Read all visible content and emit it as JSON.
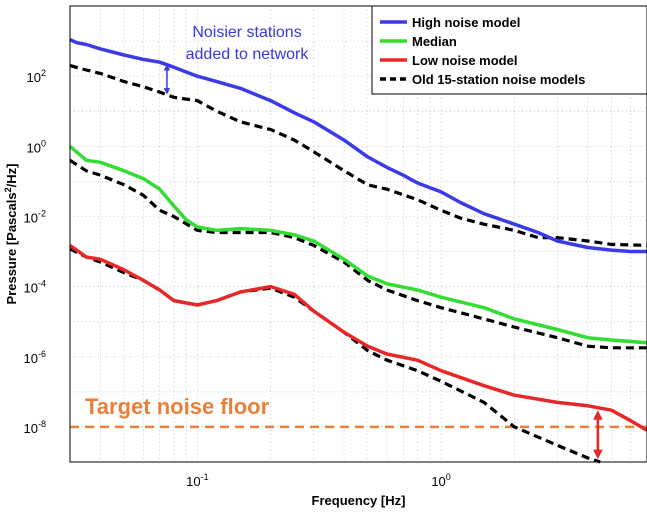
{
  "chart_data": {
    "type": "line",
    "title": "",
    "xlabel": "Frequency [Hz]",
    "ylabel_main": "Pressure [Pascals",
    "ylabel_sup": "2",
    "ylabel_end": "/Hz]",
    "x_scale": "log",
    "y_scale": "log",
    "xlim": [
      0.03,
      7
    ],
    "ylim": [
      1e-09,
      10000.0
    ],
    "grid": true,
    "legend_position": "top-right",
    "x_ticks": [
      {
        "value": 0.1,
        "base": "10",
        "exp": "-1"
      },
      {
        "value": 1,
        "base": "10",
        "exp": "0"
      }
    ],
    "y_ticks": [
      {
        "value": 1e-08,
        "base": "10",
        "exp": "-8"
      },
      {
        "value": 1e-06,
        "base": "10",
        "exp": "-6"
      },
      {
        "value": 0.0001,
        "base": "10",
        "exp": "-4"
      },
      {
        "value": 0.01,
        "base": "10",
        "exp": "-2"
      },
      {
        "value": 1,
        "base": "10",
        "exp": "0"
      },
      {
        "value": 100,
        "base": "10",
        "exp": "2"
      }
    ],
    "series": [
      {
        "name": "High noise model",
        "color": "#3a3ae8",
        "dash": "solid",
        "points": [
          [
            0.03,
            1100
          ],
          [
            0.032,
            900
          ],
          [
            0.035,
            800
          ],
          [
            0.04,
            600
          ],
          [
            0.05,
            400
          ],
          [
            0.06,
            300
          ],
          [
            0.07,
            250
          ],
          [
            0.08,
            180
          ],
          [
            0.1,
            100
          ],
          [
            0.12,
            70
          ],
          [
            0.15,
            45
          ],
          [
            0.2,
            20
          ],
          [
            0.25,
            9
          ],
          [
            0.3,
            5
          ],
          [
            0.4,
            1.5
          ],
          [
            0.5,
            0.5
          ],
          [
            0.6,
            0.25
          ],
          [
            0.7,
            0.15
          ],
          [
            0.8,
            0.09
          ],
          [
            1,
            0.05
          ],
          [
            1.2,
            0.025
          ],
          [
            1.5,
            0.012
          ],
          [
            2,
            0.006
          ],
          [
            2.5,
            0.0035
          ],
          [
            3,
            0.002
          ],
          [
            4,
            0.0013
          ],
          [
            5,
            0.0011
          ],
          [
            6,
            0.001
          ],
          [
            7,
            0.001
          ]
        ]
      },
      {
        "name": "Median",
        "color": "#33dd33",
        "dash": "solid",
        "points": [
          [
            0.03,
            1
          ],
          [
            0.035,
            0.4
          ],
          [
            0.04,
            0.35
          ],
          [
            0.05,
            0.2
          ],
          [
            0.06,
            0.12
          ],
          [
            0.07,
            0.06
          ],
          [
            0.08,
            0.02
          ],
          [
            0.09,
            0.008
          ],
          [
            0.1,
            0.005
          ],
          [
            0.12,
            0.004
          ],
          [
            0.15,
            0.0045
          ],
          [
            0.2,
            0.004
          ],
          [
            0.25,
            0.003
          ],
          [
            0.3,
            0.002
          ],
          [
            0.4,
            0.0006
          ],
          [
            0.5,
            0.0002
          ],
          [
            0.6,
            0.00012
          ],
          [
            0.8,
            8e-05
          ],
          [
            1,
            5e-05
          ],
          [
            1.5,
            2.5e-05
          ],
          [
            2,
            1.2e-05
          ],
          [
            3,
            6e-06
          ],
          [
            4,
            3.5e-06
          ],
          [
            5,
            3e-06
          ],
          [
            7,
            2.5e-06
          ]
        ]
      },
      {
        "name": "Low noise model",
        "color": "#e82828",
        "dash": "solid",
        "points": [
          [
            0.03,
            0.0015
          ],
          [
            0.035,
            0.0007
          ],
          [
            0.04,
            0.0006
          ],
          [
            0.05,
            0.0003
          ],
          [
            0.06,
            0.00015
          ],
          [
            0.07,
            8e-05
          ],
          [
            0.08,
            4e-05
          ],
          [
            0.1,
            3e-05
          ],
          [
            0.12,
            4e-05
          ],
          [
            0.15,
            7e-05
          ],
          [
            0.2,
            0.0001
          ],
          [
            0.25,
            6e-05
          ],
          [
            0.3,
            2e-05
          ],
          [
            0.4,
            5e-06
          ],
          [
            0.5,
            2e-06
          ],
          [
            0.6,
            1.2e-06
          ],
          [
            0.8,
            8e-07
          ],
          [
            1,
            4e-07
          ],
          [
            1.5,
            1.5e-07
          ],
          [
            2,
            8e-08
          ],
          [
            3,
            5e-08
          ],
          [
            4,
            4e-08
          ],
          [
            5,
            3e-08
          ],
          [
            6,
            1.5e-08
          ],
          [
            7,
            8e-09
          ]
        ]
      },
      {
        "name": "Old 15-station noise models",
        "color": "#000000",
        "dash": "dashed",
        "points": [
          [
            0.03,
            200
          ],
          [
            0.035,
            150
          ],
          [
            0.04,
            120
          ],
          [
            0.05,
            70
          ],
          [
            0.06,
            50
          ],
          [
            0.07,
            35
          ],
          [
            0.08,
            25
          ],
          [
            0.1,
            20
          ],
          [
            0.12,
            10
          ],
          [
            0.15,
            5
          ],
          [
            0.2,
            3
          ],
          [
            0.25,
            1.5
          ],
          [
            0.3,
            0.7
          ],
          [
            0.4,
            0.2
          ],
          [
            0.5,
            0.08
          ],
          [
            0.6,
            0.06
          ],
          [
            0.8,
            0.03
          ],
          [
            1,
            0.015
          ],
          [
            1.2,
            0.009
          ],
          [
            1.5,
            0.006
          ],
          [
            2,
            0.004
          ],
          [
            2.5,
            0.0025
          ],
          [
            3,
            0.0025
          ],
          [
            4,
            0.002
          ],
          [
            5,
            0.0016
          ],
          [
            7,
            0.0015
          ]
        ]
      },
      {
        "name": "",
        "color": "#000000",
        "dash": "dashed",
        "points": [
          [
            0.03,
            0.4
          ],
          [
            0.035,
            0.2
          ],
          [
            0.04,
            0.15
          ],
          [
            0.05,
            0.08
          ],
          [
            0.06,
            0.04
          ],
          [
            0.07,
            0.015
          ],
          [
            0.08,
            0.01
          ],
          [
            0.1,
            0.004
          ],
          [
            0.12,
            0.0035
          ],
          [
            0.15,
            0.0035
          ],
          [
            0.2,
            0.0035
          ],
          [
            0.25,
            0.0025
          ],
          [
            0.3,
            0.0015
          ],
          [
            0.4,
            0.0005
          ],
          [
            0.5,
            0.00015
          ],
          [
            0.6,
            8e-05
          ],
          [
            0.8,
            4e-05
          ],
          [
            1,
            2.5e-05
          ],
          [
            1.5,
            1.2e-05
          ],
          [
            2,
            7e-06
          ],
          [
            3,
            3.5e-06
          ],
          [
            4,
            2e-06
          ],
          [
            5,
            1.8e-06
          ],
          [
            7,
            1.8e-06
          ]
        ]
      },
      {
        "name": "",
        "color": "#000000",
        "dash": "dashed",
        "points": [
          [
            0.03,
            0.0012
          ],
          [
            0.035,
            0.0007
          ],
          [
            0.04,
            0.0005
          ],
          [
            0.05,
            0.00025
          ],
          [
            0.06,
            0.00015
          ],
          [
            0.07,
            8e-05
          ],
          [
            0.08,
            4e-05
          ],
          [
            0.1,
            3e-05
          ],
          [
            0.12,
            4e-05
          ],
          [
            0.15,
            7e-05
          ],
          [
            0.2,
            9e-05
          ],
          [
            0.25,
            5e-05
          ],
          [
            0.3,
            2e-05
          ],
          [
            0.4,
            5e-06
          ],
          [
            0.5,
            1.5e-06
          ],
          [
            0.6,
            8e-07
          ],
          [
            0.8,
            4e-07
          ],
          [
            1,
            2e-07
          ],
          [
            1.5,
            5e-08
          ],
          [
            2,
            1e-08
          ],
          [
            3,
            3e-09
          ],
          [
            4,
            1.3e-09
          ],
          [
            4.5,
            1e-09
          ]
        ]
      }
    ],
    "reference_line": {
      "value": 1e-08,
      "color": "#e8803a",
      "label": "Target noise floor"
    },
    "annotations": {
      "blue_text_line1": "Noisier stations",
      "blue_text_line2": "added to network",
      "blue_color": "#3838e0",
      "blue_arrow": {
        "x": 0.075,
        "y_from": 220,
        "y_to": 30
      },
      "red_arrow": {
        "x": 4.4,
        "y_from": 3e-08,
        "y_to": 1.2e-09,
        "color": "#e82828"
      }
    }
  }
}
